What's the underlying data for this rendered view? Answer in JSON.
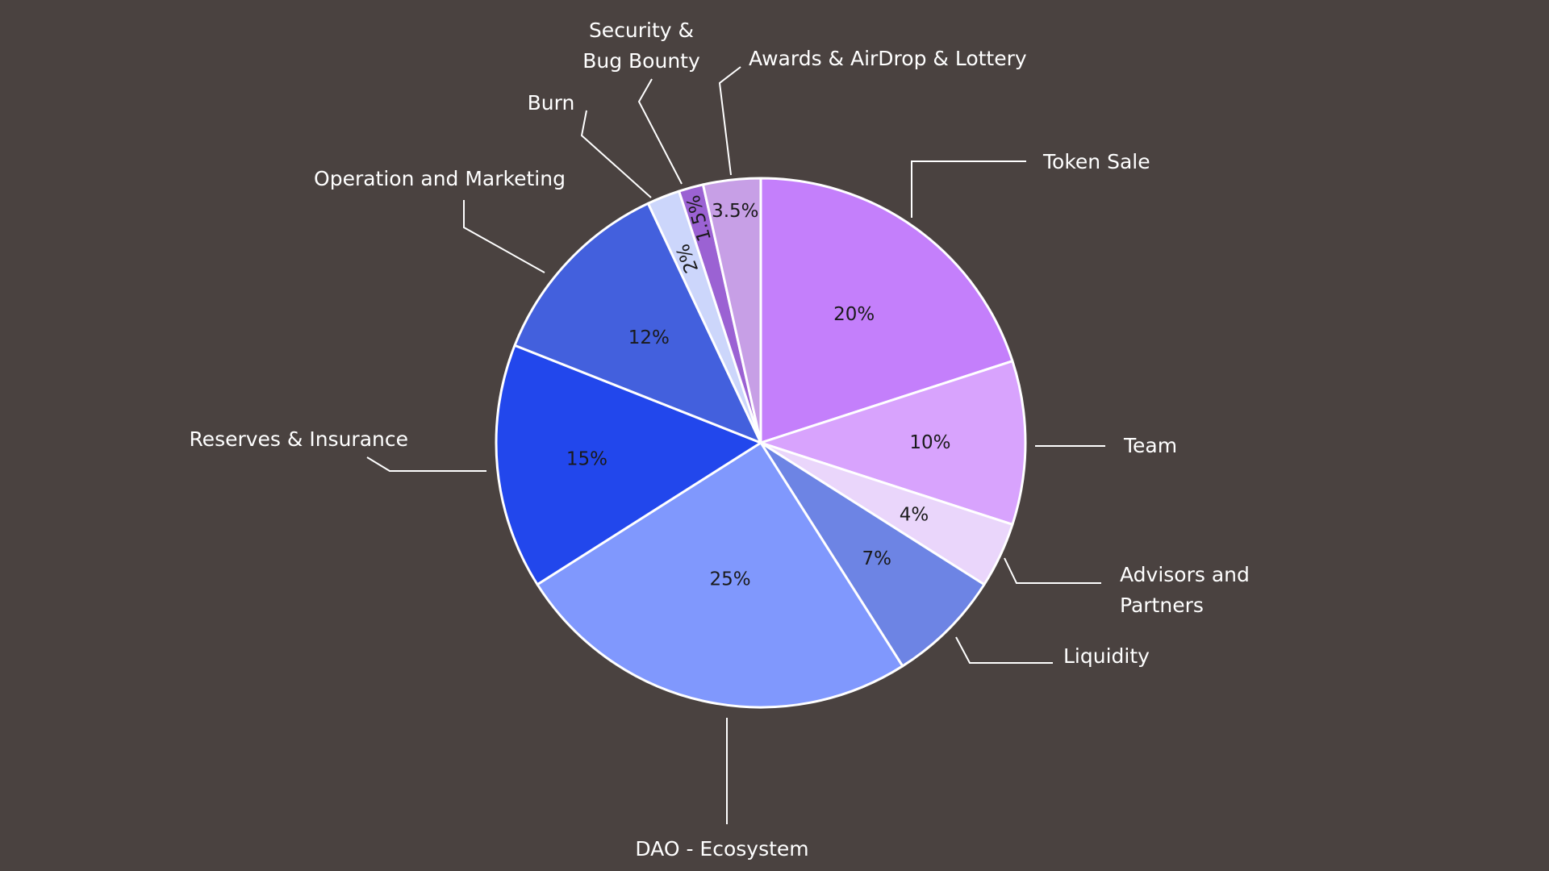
{
  "chart_data": {
    "type": "pie",
    "title": "",
    "slices": [
      {
        "label": "Token Sale",
        "value": 20,
        "value_label": "20%",
        "color": "#c47ffb"
      },
      {
        "label": "Team",
        "value": 10,
        "value_label": "10%",
        "color": "#d8a3fd"
      },
      {
        "label": "Advisors and Partners",
        "label_lines": [
          "Advisors and",
          "Partners"
        ],
        "value": 4,
        "value_label": "4%",
        "color": "#ead6fb"
      },
      {
        "label": "Liquidity",
        "value": 7,
        "value_label": "7%",
        "color": "#6d84e4"
      },
      {
        "label": "DAO - Ecosystem",
        "value": 25,
        "value_label": "25%",
        "color": "#8098fd"
      },
      {
        "label": "Reserves & Insurance",
        "value": 15,
        "value_label": "15%",
        "color": "#2247ec"
      },
      {
        "label": "Operation and Marketing",
        "value": 12,
        "value_label": "12%",
        "color": "#4360dd"
      },
      {
        "label": "Burn",
        "value": 2,
        "value_label": "2%",
        "color": "#ccd6fb"
      },
      {
        "label": "Security & Bug Bounty",
        "label_lines": [
          "Security &",
          "Bug Bounty"
        ],
        "value": 1.5,
        "value_label": "1.5%",
        "color": "#9b62d3"
      },
      {
        "label": "Awards & AirDrop & Lottery",
        "value": 3.5,
        "value_label": "3.5%",
        "color": "#c79fe6"
      }
    ],
    "start_angle": "12 o'clock",
    "direction": "clockwise",
    "legend": "none",
    "slice_border_color": "#ffffff",
    "background_color": "#4a4240",
    "label_color": "#ffffff",
    "value_label_color": "#1a1a1a"
  }
}
